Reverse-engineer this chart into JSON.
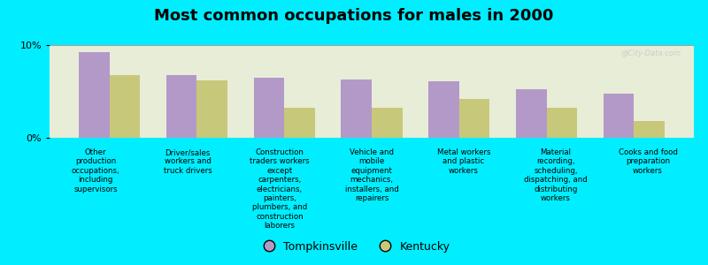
{
  "title": "Most common occupations for males in 2000",
  "categories": [
    "Other\nproduction\noccupations,\nincluding\nsupervisors",
    "Driver/sales\nworkers and\ntruck drivers",
    "Construction\ntraders workers\nexcept\ncarpenters,\nelectricians,\npainters,\nplumbers, and\nconstruction\nlaborers",
    "Vehicle and\nmobile\nequipment\nmechanics,\ninstallers, and\nrepairers",
    "Metal workers\nand plastic\nworkers",
    "Material\nrecording,\nscheduling,\ndispatching, and\ndistributing\nworkers",
    "Cooks and food\npreparation\nworkers"
  ],
  "tompkinsville_values": [
    9.2,
    6.8,
    6.5,
    6.3,
    6.1,
    5.2,
    4.8
  ],
  "kentucky_values": [
    6.8,
    6.2,
    3.2,
    3.2,
    4.2,
    3.2,
    1.8
  ],
  "tompkinsville_color": "#b399c8",
  "kentucky_color": "#c8c87a",
  "background_color": "#00eeff",
  "plot_bg_color": "#e8edd8",
  "ylim": [
    0,
    10
  ],
  "yticks": [
    0,
    10
  ],
  "ytick_labels": [
    "0%",
    "10%"
  ],
  "bar_width": 0.35,
  "legend_labels": [
    "Tompkinsville",
    "Kentucky"
  ],
  "watermark": "@City-Data.com"
}
